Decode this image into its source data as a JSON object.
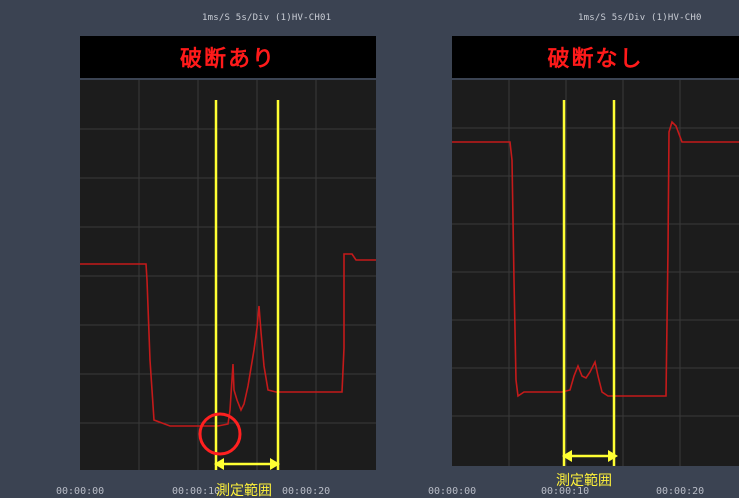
{
  "header": {
    "left_status": "1ms/S   5s/Div   (1)HV-CH01",
    "right_status": "1ms/S   5s/Div   (1)HV-CH0"
  },
  "panels": [
    {
      "title": "破断あり",
      "x_ticks": [
        "00:00:00",
        "00:00:10",
        "00:00:20"
      ],
      "range_label": "測定範囲"
    },
    {
      "title": "破断なし",
      "x_ticks": [
        "00:00:00",
        "00:00:10",
        "00:00:20"
      ],
      "range_label": "測定範囲"
    }
  ],
  "colors": {
    "background": "#3b4352",
    "plot_bg": "#1c1c1c",
    "grid": "#3a3a3a",
    "trace": "#c41a1a",
    "marker": "#ffff33",
    "title_text": "#ff1a1a",
    "circle": "#ff2020"
  }
}
